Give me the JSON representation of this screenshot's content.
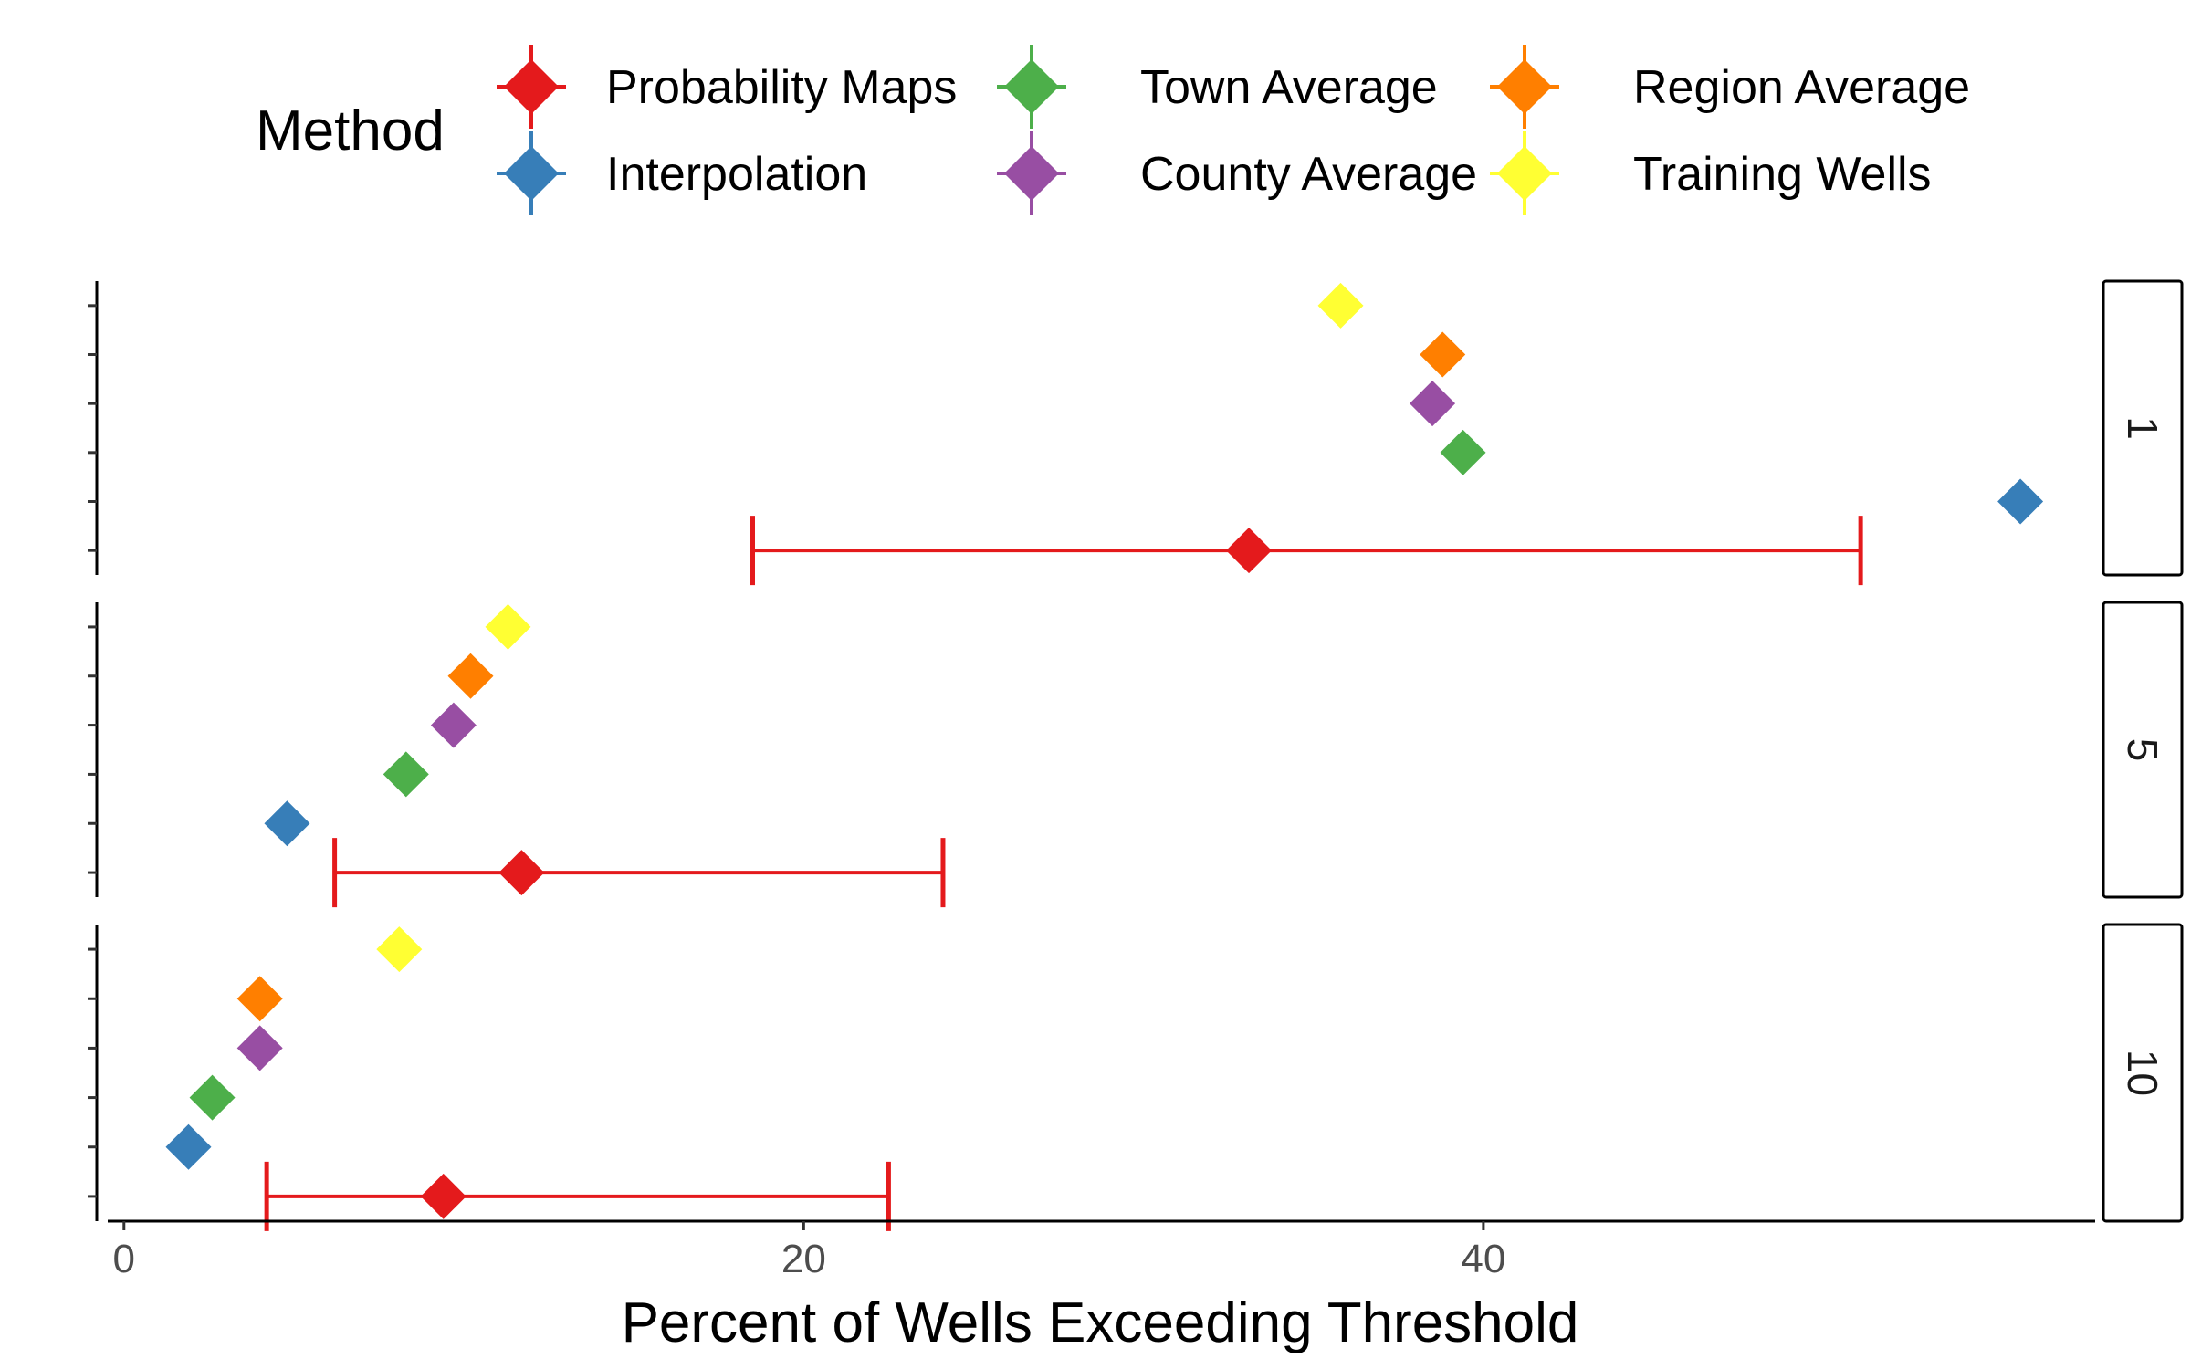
{
  "chart_data": {
    "type": "scatter",
    "xlabel": "Percent of Wells Exceeding Threshold",
    "xlim": [
      -0.8,
      58
    ],
    "xticks": [
      0,
      20,
      40
    ],
    "legend": {
      "title": "Method",
      "placement": "top",
      "entries": [
        {
          "label": "Probability Maps",
          "color": "#e41a1c"
        },
        {
          "label": "Interpolation",
          "color": "#377eb8"
        },
        {
          "label": "Town Average",
          "color": "#4daf4a"
        },
        {
          "label": "County Average",
          "color": "#984ea3"
        },
        {
          "label": "Region Average",
          "color": "#ff7f00"
        },
        {
          "label": "Training Wells",
          "color": "#ffff33"
        }
      ]
    },
    "facets": [
      {
        "label": "1",
        "points": [
          {
            "method": "Probability Maps",
            "x": 33.1,
            "xmin": 18.5,
            "xmax": 51.1
          },
          {
            "method": "Interpolation",
            "x": 55.8
          },
          {
            "method": "Town Average",
            "x": 39.4
          },
          {
            "method": "County Average",
            "x": 38.5
          },
          {
            "method": "Region Average",
            "x": 38.8
          },
          {
            "method": "Training Wells",
            "x": 35.8
          }
        ]
      },
      {
        "label": "5",
        "points": [
          {
            "method": "Probability Maps",
            "x": 11.7,
            "xmin": 6.2,
            "xmax": 24.1
          },
          {
            "method": "Interpolation",
            "x": 4.8
          },
          {
            "method": "Town Average",
            "x": 8.3
          },
          {
            "method": "County Average",
            "x": 9.7
          },
          {
            "method": "Region Average",
            "x": 10.2
          },
          {
            "method": "Training Wells",
            "x": 11.3
          }
        ]
      },
      {
        "label": "10",
        "points": [
          {
            "method": "Probability Maps",
            "x": 9.4,
            "xmin": 4.2,
            "xmax": 22.5
          },
          {
            "method": "Interpolation",
            "x": 1.9
          },
          {
            "method": "Town Average",
            "x": 2.6
          },
          {
            "method": "County Average",
            "x": 4.0
          },
          {
            "method": "Region Average",
            "x": 4.0
          },
          {
            "method": "Training Wells",
            "x": 8.1
          }
        ]
      }
    ],
    "grid": false
  }
}
